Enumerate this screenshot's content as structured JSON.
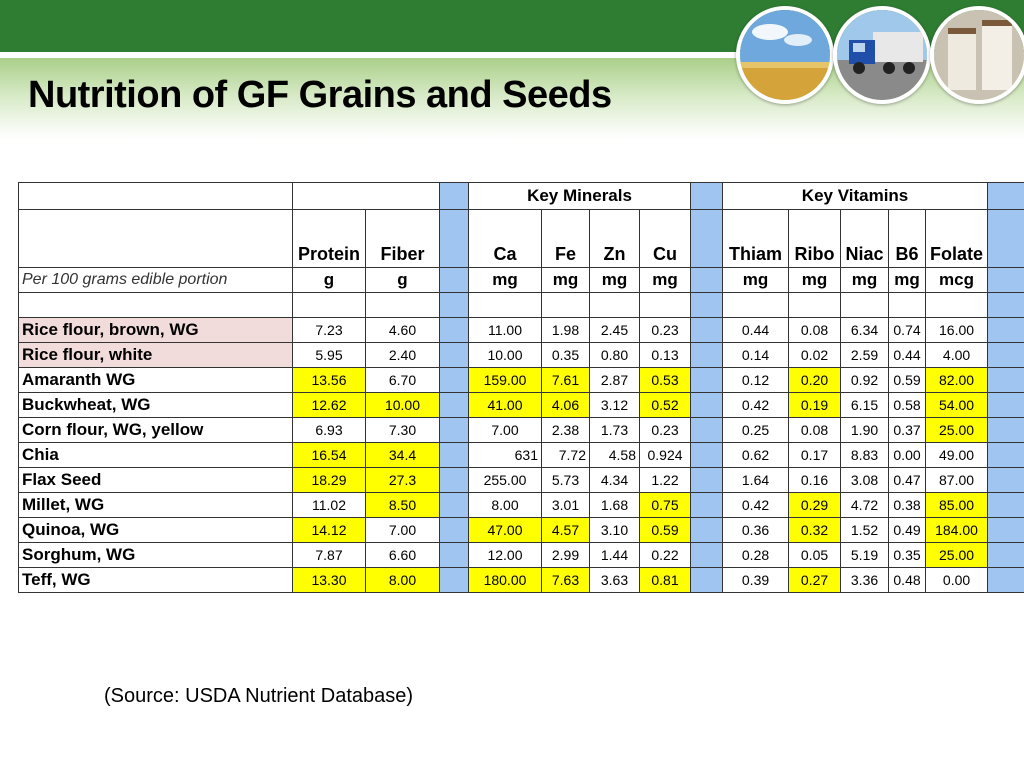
{
  "title": "Nutrition of GF Grains and Seeds",
  "header_images": [
    "wheat-field-photo",
    "truck-photo",
    "grain-bins-photo"
  ],
  "table": {
    "group_headers": {
      "minerals": "Key Minerals",
      "vitamins": "Key Vitamins"
    },
    "columns": [
      "Protein",
      "Fiber",
      "Ca",
      "Fe",
      "Zn",
      "Cu",
      "Thiam",
      "Ribo",
      "Niac",
      "B6",
      "Folate"
    ],
    "portion_label": "Per 100 grams edible portion",
    "units": [
      "g",
      "g",
      "mg",
      "mg",
      "mg",
      "mg",
      "mg",
      "mg",
      "mg",
      "mg",
      "mcg"
    ],
    "highlight_color": "#ffff00",
    "separator_color": "#9fc5f0",
    "pink_color": "#f2dcdb",
    "rows": [
      {
        "name": "Rice flour, brown, WG",
        "values": [
          "7.23",
          "4.60",
          "11.00",
          "1.98",
          "2.45",
          "0.23",
          "0.44",
          "0.08",
          "6.34",
          "0.74",
          "16.00"
        ]
      },
      {
        "name": "Rice flour, white",
        "values": [
          "5.95",
          "2.40",
          "10.00",
          "0.35",
          "0.80",
          "0.13",
          "0.14",
          "0.02",
          "2.59",
          "0.44",
          "4.00"
        ]
      },
      {
        "name": "Amaranth WG",
        "values": [
          "13.56",
          "6.70",
          "159.00",
          "7.61",
          "2.87",
          "0.53",
          "0.12",
          "0.20",
          "0.92",
          "0.59",
          "82.00"
        ]
      },
      {
        "name": "Buckwheat, WG",
        "values": [
          "12.62",
          "10.00",
          "41.00",
          "4.06",
          "3.12",
          "0.52",
          "0.42",
          "0.19",
          "6.15",
          "0.58",
          "54.00"
        ]
      },
      {
        "name": "Corn flour, WG, yellow",
        "values": [
          "6.93",
          "7.30",
          "7.00",
          "2.38",
          "1.73",
          "0.23",
          "0.25",
          "0.08",
          "1.90",
          "0.37",
          "25.00"
        ]
      },
      {
        "name": "Chia",
        "values": [
          "16.54",
          "34.4",
          "631",
          "7.72",
          "4.58",
          "0.924",
          "0.62",
          "0.17",
          "8.83",
          "0.00",
          "49.00"
        ]
      },
      {
        "name": "Flax Seed",
        "values": [
          "18.29",
          "27.3",
          "255.00",
          "5.73",
          "4.34",
          "1.22",
          "1.64",
          "0.16",
          "3.08",
          "0.47",
          "87.00"
        ]
      },
      {
        "name": "Millet, WG",
        "values": [
          "11.02",
          "8.50",
          "8.00",
          "3.01",
          "1.68",
          "0.75",
          "0.42",
          "0.29",
          "4.72",
          "0.38",
          "85.00"
        ]
      },
      {
        "name": "Quinoa, WG",
        "values": [
          "14.12",
          "7.00",
          "47.00",
          "4.57",
          "3.10",
          "0.59",
          "0.36",
          "0.32",
          "1.52",
          "0.49",
          "184.00"
        ]
      },
      {
        "name": "Sorghum, WG",
        "values": [
          "7.87",
          "6.60",
          "12.00",
          "2.99",
          "1.44",
          "0.22",
          "0.28",
          "0.05",
          "5.19",
          "0.35",
          "25.00"
        ]
      },
      {
        "name": "Teff, WG",
        "values": [
          "13.30",
          "8.00",
          "180.00",
          "7.63",
          "3.63",
          "0.81",
          "0.39",
          "0.27",
          "3.36",
          "0.48",
          "0.00"
        ]
      }
    ]
  },
  "source": "(Source:  USDA Nutrient Database)"
}
